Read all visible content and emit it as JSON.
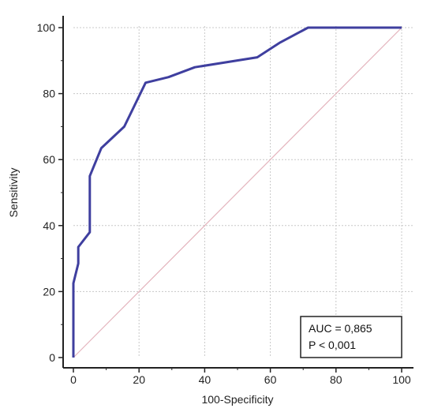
{
  "chart_data": {
    "type": "line",
    "title": "",
    "xlabel": "100-Specificity",
    "ylabel": "Sensitivity",
    "xlim": [
      0,
      100
    ],
    "ylim": [
      0,
      100
    ],
    "x_ticks": [
      0,
      20,
      40,
      60,
      80,
      100
    ],
    "y_ticks": [
      0,
      20,
      40,
      60,
      80,
      100
    ],
    "grid": true,
    "series": [
      {
        "color": "#3f3f9f",
        "x": [
          0,
          0,
          1.5,
          1.5,
          5,
          5,
          8.5,
          15.5,
          22,
          29,
          37,
          56,
          63,
          71.5,
          100
        ],
        "y": [
          0,
          22.5,
          28.5,
          33.5,
          38,
          55,
          63.5,
          70,
          83.3,
          85,
          88,
          91,
          95.5,
          100,
          100
        ]
      }
    ],
    "reference_line": {
      "x": [
        0,
        100
      ],
      "y": [
        0,
        100
      ],
      "color": "#e4b4bd"
    },
    "annotation": {
      "lines": [
        "AUC = 0,865",
        "P < 0,001"
      ],
      "position": "bottom-right"
    }
  }
}
